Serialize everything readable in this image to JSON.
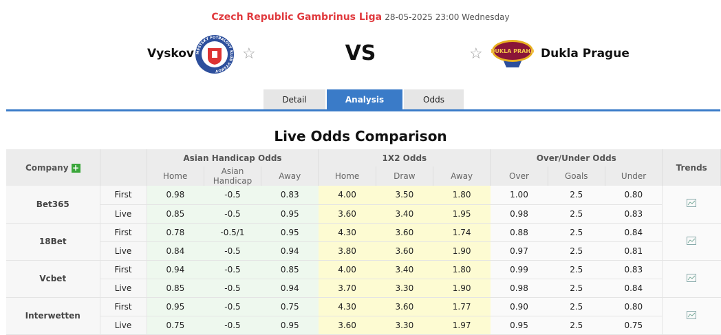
{
  "header": {
    "league": "Czech Republic Gambrinus Liga",
    "datetime": "28-05-2025 23:00 Wednesday",
    "home_team": "Vyskov",
    "away_team": "Dukla Prague",
    "vs": "VS",
    "home_logo_text": "MĚSTSKÝ FOTBALOVÝ KLUB VYŠKOV",
    "away_logo_text": "DUKLA PRAHA"
  },
  "tabs": [
    {
      "label": "Detail",
      "active": false
    },
    {
      "label": "Analysis",
      "active": true
    },
    {
      "label": "Odds",
      "active": false
    }
  ],
  "section_title": "Live Odds Comparison",
  "table": {
    "company_header": "Company",
    "trends_header": "Trends",
    "groups": [
      "Asian Handicap Odds",
      "1X2 Odds",
      "Over/Under Odds"
    ],
    "subheaders": [
      "Home",
      "Asian Handicap",
      "Away",
      "Home",
      "Draw",
      "Away",
      "Over",
      "Goals",
      "Under"
    ],
    "rows": [
      {
        "company": "Bet365",
        "first": [
          "0.98",
          "-0.5",
          "0.83",
          "4.00",
          "3.50",
          "1.80",
          "1.00",
          "2.5",
          "0.80"
        ],
        "live": [
          "0.85",
          "-0.5",
          "0.95",
          "3.60",
          "3.40",
          "1.95",
          "0.98",
          "2.5",
          "0.83"
        ]
      },
      {
        "company": "18Bet",
        "first": [
          "0.78",
          "-0.5/1",
          "0.95",
          "4.30",
          "3.60",
          "1.74",
          "0.88",
          "2.5",
          "0.84"
        ],
        "live": [
          "0.84",
          "-0.5",
          "0.94",
          "3.80",
          "3.60",
          "1.90",
          "0.97",
          "2.5",
          "0.81"
        ]
      },
      {
        "company": "Vcbet",
        "first": [
          "0.94",
          "-0.5",
          "0.85",
          "4.00",
          "3.40",
          "1.80",
          "0.99",
          "2.5",
          "0.83"
        ],
        "live": [
          "0.85",
          "-0.5",
          "0.94",
          "3.70",
          "3.30",
          "1.90",
          "0.98",
          "2.5",
          "0.84"
        ]
      },
      {
        "company": "Interwetten",
        "first": [
          "0.95",
          "-0.5",
          "0.75",
          "4.30",
          "3.60",
          "1.77",
          "0.90",
          "2.5",
          "0.80"
        ],
        "live": [
          "0.75",
          "-0.5",
          "0.95",
          "3.60",
          "3.30",
          "1.97",
          "0.95",
          "2.5",
          "0.75"
        ]
      }
    ],
    "first_label": "First",
    "live_label": "Live"
  },
  "colors": {
    "accent": "#3a7bc8",
    "league": "#e03a3e",
    "ah_bg": "#eef8ee",
    "x12_bg": "#fdfbd2",
    "plus": "#3aa63a"
  }
}
